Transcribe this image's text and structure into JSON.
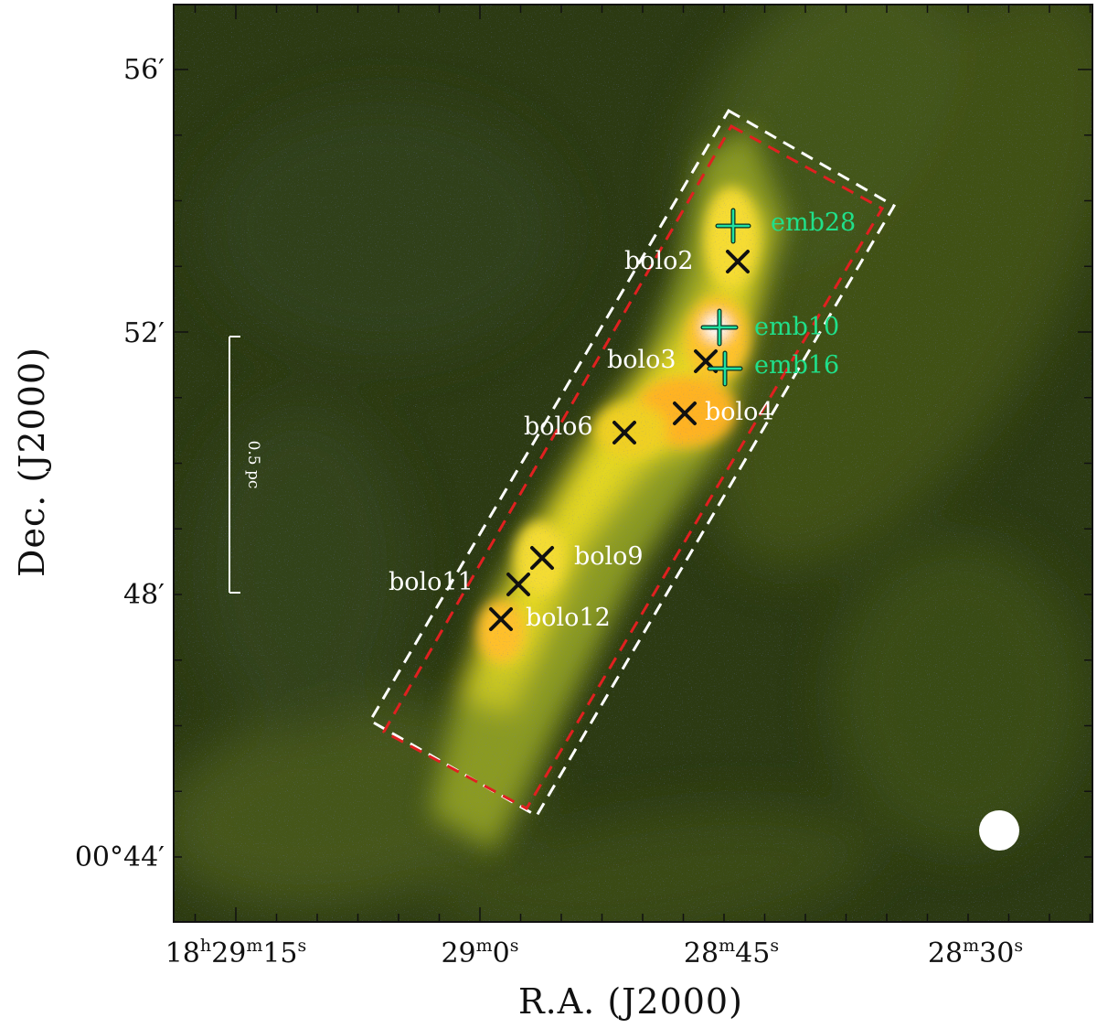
{
  "figure": {
    "x_axis_title": "R.A. (J2000)",
    "y_axis_title": "Dec. (J2000)",
    "x_tick_labels": [
      {
        "h": "18",
        "hu": "h",
        "m": "29",
        "mu": "m",
        "s": "15",
        "su": "s"
      },
      {
        "m": "29",
        "mu": "m",
        "s": "0",
        "su": "s"
      },
      {
        "m": "28",
        "mu": "m",
        "s": "45",
        "su": "s"
      },
      {
        "m": "28",
        "mu": "m",
        "s": "30",
        "su": "s"
      }
    ],
    "y_tick_labels": [
      "56′",
      "52′",
      "48′",
      "00°44′"
    ],
    "scale_bar_label": "0.5 pc",
    "colors": {
      "background": "#2c3a12",
      "filament": "#e8d020",
      "peak": "#ffb020",
      "outer_box": "#ffffff",
      "inner_box": "#e02020",
      "embedded_marker": "#20e0a0",
      "bolometric_marker": "#111111",
      "label_white": "#ffffff",
      "label_green": "#20e08a"
    },
    "sources": [
      {
        "label": "emb28",
        "marker": "plus",
        "label_color": "green"
      },
      {
        "label": "bolo2",
        "marker": "cross",
        "label_color": "white"
      },
      {
        "label": "emb10",
        "marker": "plus",
        "label_color": "green"
      },
      {
        "label": "bolo3",
        "marker": "cross",
        "label_color": "white"
      },
      {
        "label": "emb16",
        "marker": "plus",
        "label_color": "green"
      },
      {
        "label": "bolo4",
        "marker": "cross",
        "label_color": "white"
      },
      {
        "label": "bolo6",
        "marker": "cross",
        "label_color": "white"
      },
      {
        "label": "bolo9",
        "marker": "cross",
        "label_color": "white"
      },
      {
        "label": "bolo11",
        "marker": "cross",
        "label_color": "white"
      },
      {
        "label": "bolo12",
        "marker": "cross",
        "label_color": "white"
      }
    ],
    "beam_marker": "filled-circle"
  }
}
